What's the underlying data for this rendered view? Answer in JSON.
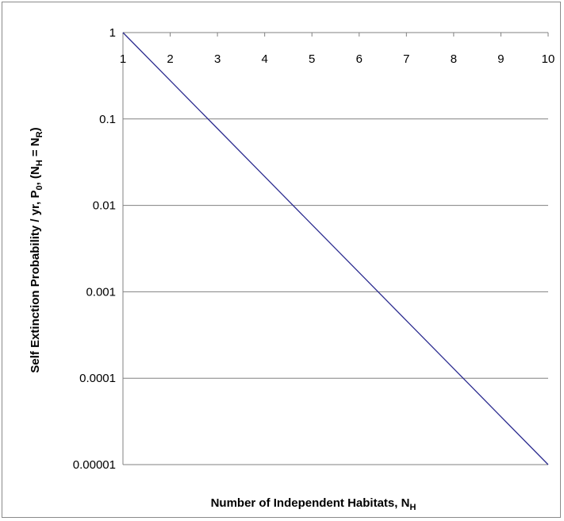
{
  "chart_data": {
    "type": "line",
    "x_scale": "linear",
    "y_scale": "log",
    "xlim": [
      1,
      10
    ],
    "ylim": [
      1e-05,
      1
    ],
    "x_ticks": [
      "1",
      "2",
      "3",
      "4",
      "5",
      "6",
      "7",
      "8",
      "9",
      "10"
    ],
    "y_ticks": [
      "1",
      "0.1",
      "0.01",
      "0.001",
      "0.0001",
      "0.00001"
    ],
    "grid": "horizontal",
    "x_axis_position": "top",
    "xlabel": {
      "main": "Number of Independent Habitats, N",
      "sub": "H"
    },
    "ylabel": {
      "p1": "Self Extinction Probability / yr, P",
      "s1": "0",
      "p2": ", (N",
      "s2": "H",
      "p3": " = N",
      "s3": "R",
      "p4": ")"
    },
    "line_color": "#2b2b8f",
    "series": [
      {
        "x": [
          1,
          2,
          3,
          4,
          5,
          6,
          7,
          8,
          9,
          10
        ],
        "values": [
          1,
          0.2783,
          0.07743,
          0.02154,
          0.005995,
          0.001668,
          0.0004642,
          0.0001292,
          3.594e-05,
          1e-05
        ]
      }
    ]
  }
}
